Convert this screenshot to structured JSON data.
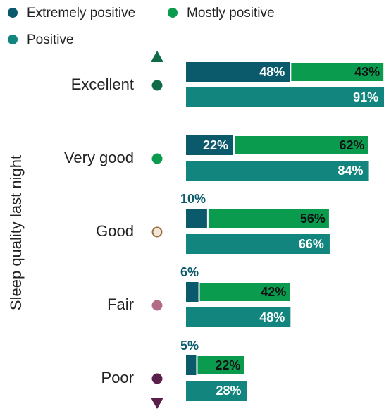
{
  "chart_data": {
    "type": "bar",
    "orientation": "horizontal",
    "y_label": "Sleep quality last night",
    "categories": [
      "Excellent",
      "Very good",
      "Good",
      "Fair",
      "Poor"
    ],
    "series": [
      {
        "name": "Extremely positive",
        "color": "#0b5a6b",
        "values": [
          48,
          22,
          10,
          6,
          5
        ],
        "value_labels": [
          "48%",
          "22%",
          "10%",
          "6%",
          "5%"
        ]
      },
      {
        "name": "Mostly positive",
        "color": "#0a9b4f",
        "values": [
          43,
          62,
          56,
          42,
          22
        ],
        "value_labels": [
          "43%",
          "62%",
          "56%",
          "42%",
          "22%"
        ]
      },
      {
        "name": "Positive",
        "color": "#11857e",
        "values": [
          91,
          84,
          66,
          48,
          28
        ],
        "value_labels": [
          "91%",
          "84%",
          "66%",
          "48%",
          "28%"
        ]
      }
    ]
  }
}
